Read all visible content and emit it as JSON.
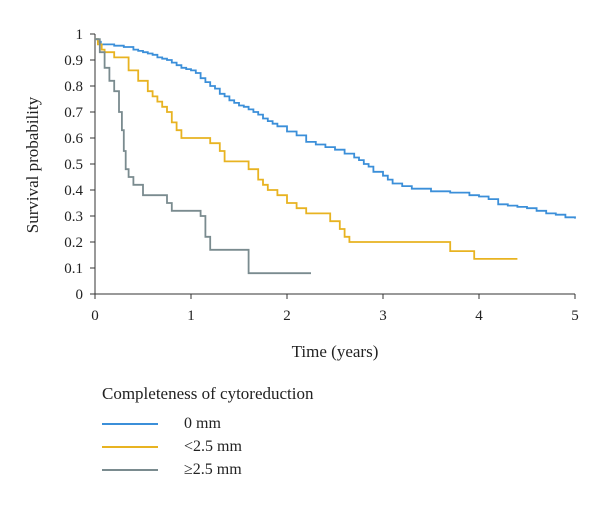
{
  "colors": {
    "s0": "#3b8fd9",
    "s1": "#e8b321",
    "s2": "#7a8b8f"
  },
  "chart_data": {
    "type": "line",
    "step": true,
    "xlabel": "Time (years)",
    "ylabel": "Survival probability",
    "xlim": [
      0,
      5
    ],
    "ylim": [
      0,
      1
    ],
    "xticks": [
      0,
      1,
      2,
      3,
      4,
      5
    ],
    "yticks": [
      0,
      0.1,
      0.2,
      0.3,
      0.4,
      0.5,
      0.6,
      0.7,
      0.8,
      0.9,
      1
    ],
    "legend_title": "Completeness of cytoreduction",
    "legend_position": "bottom-left",
    "series": [
      {
        "name": "0 mm",
        "color": "#3b8fd9",
        "x": [
          0,
          0.03,
          0.06,
          0.1,
          0.2,
          0.3,
          0.4,
          0.45,
          0.5,
          0.55,
          0.6,
          0.65,
          0.7,
          0.75,
          0.8,
          0.85,
          0.9,
          0.95,
          1.0,
          1.05,
          1.1,
          1.15,
          1.2,
          1.25,
          1.3,
          1.35,
          1.4,
          1.45,
          1.5,
          1.55,
          1.6,
          1.65,
          1.7,
          1.75,
          1.8,
          1.85,
          1.9,
          2.0,
          2.1,
          2.2,
          2.3,
          2.4,
          2.5,
          2.6,
          2.7,
          2.75,
          2.8,
          2.85,
          2.9,
          3.0,
          3.05,
          3.1,
          3.2,
          3.3,
          3.5,
          3.7,
          3.9,
          4.0,
          4.1,
          4.2,
          4.3,
          4.4,
          4.5,
          4.6,
          4.7,
          4.8,
          4.9,
          5.0
        ],
        "y": [
          0.98,
          0.97,
          0.96,
          0.96,
          0.955,
          0.95,
          0.94,
          0.935,
          0.93,
          0.925,
          0.92,
          0.91,
          0.905,
          0.9,
          0.89,
          0.88,
          0.87,
          0.865,
          0.86,
          0.85,
          0.83,
          0.815,
          0.8,
          0.79,
          0.77,
          0.76,
          0.745,
          0.735,
          0.725,
          0.72,
          0.71,
          0.7,
          0.69,
          0.675,
          0.665,
          0.655,
          0.645,
          0.625,
          0.61,
          0.585,
          0.575,
          0.565,
          0.555,
          0.54,
          0.525,
          0.515,
          0.5,
          0.49,
          0.47,
          0.455,
          0.44,
          0.425,
          0.415,
          0.405,
          0.395,
          0.39,
          0.38,
          0.375,
          0.365,
          0.345,
          0.34,
          0.335,
          0.33,
          0.32,
          0.31,
          0.305,
          0.295,
          0.29
        ]
      },
      {
        "name": "<2.5 mm",
        "color": "#e8b321",
        "x": [
          0,
          0.03,
          0.07,
          0.1,
          0.2,
          0.35,
          0.45,
          0.55,
          0.6,
          0.65,
          0.7,
          0.75,
          0.8,
          0.85,
          0.9,
          0.95,
          1.0,
          1.2,
          1.3,
          1.35,
          1.6,
          1.7,
          1.75,
          1.8,
          1.9,
          2.0,
          2.1,
          2.2,
          2.45,
          2.55,
          2.6,
          2.65,
          3.7,
          3.95,
          4.4
        ],
        "y": [
          0.98,
          0.96,
          0.94,
          0.93,
          0.91,
          0.86,
          0.82,
          0.78,
          0.76,
          0.74,
          0.72,
          0.7,
          0.66,
          0.63,
          0.6,
          0.6,
          0.6,
          0.58,
          0.55,
          0.51,
          0.48,
          0.44,
          0.42,
          0.4,
          0.38,
          0.35,
          0.33,
          0.31,
          0.28,
          0.25,
          0.22,
          0.2,
          0.165,
          0.135,
          0.135
        ]
      },
      {
        "name": "≥2.5 mm",
        "color": "#7a8b8f",
        "x": [
          0,
          0.05,
          0.1,
          0.15,
          0.2,
          0.25,
          0.28,
          0.3,
          0.32,
          0.35,
          0.4,
          0.5,
          0.75,
          0.8,
          0.85,
          1.1,
          1.15,
          1.2,
          1.6,
          2.25
        ],
        "y": [
          0.98,
          0.93,
          0.87,
          0.82,
          0.78,
          0.7,
          0.63,
          0.55,
          0.48,
          0.45,
          0.42,
          0.38,
          0.35,
          0.32,
          0.32,
          0.3,
          0.22,
          0.17,
          0.08,
          0.08
        ]
      }
    ]
  }
}
